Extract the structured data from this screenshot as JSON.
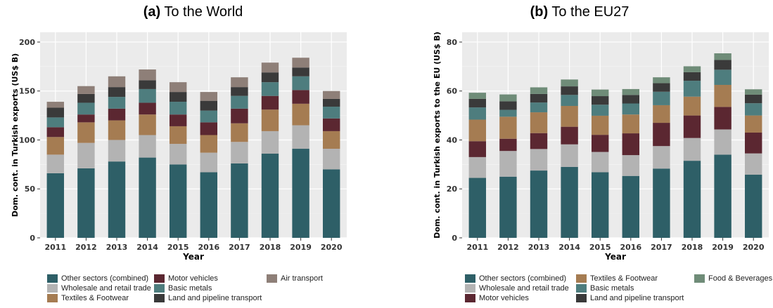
{
  "colors": {
    "Other sectors (combined)": "#2e5f67",
    "Wholesale and retail trade": "#b3b3b3",
    "Textiles & Footwear": "#a57c52",
    "Motor vehicles": "#5b2731",
    "Basic metals": "#4e7d7e",
    "Land and pipeline transport": "#3a3a3a",
    "Air transport": "#8e7f78",
    "Food & Beverages": "#6f8c78"
  },
  "chart_data": [
    {
      "type": "bar",
      "stacked": true,
      "title_prefix": "(a)",
      "title_text": " To the World",
      "xlabel": "Year",
      "ylabel": "Dom. cont. in Turkish exports (US$ B)",
      "categories": [
        "2011",
        "2012",
        "2013",
        "2014",
        "2015",
        "2016",
        "2017",
        "2018",
        "2019",
        "2020"
      ],
      "ylim": [
        0,
        210
      ],
      "yticks": [
        0,
        50,
        100,
        150,
        200
      ],
      "grid": true,
      "series": [
        {
          "name": "Other sectors (combined)",
          "values": [
            66,
            71,
            78,
            82,
            75,
            67,
            76,
            86,
            91,
            70
          ]
        },
        {
          "name": "Wholesale and retail trade",
          "values": [
            19,
            26,
            22,
            23,
            21,
            20,
            22,
            23,
            24,
            21
          ]
        },
        {
          "name": "Textiles & Footwear",
          "values": [
            18,
            21,
            20,
            21,
            18,
            18,
            19,
            22,
            22,
            18
          ]
        },
        {
          "name": "Motor vehicles",
          "values": [
            10,
            8,
            12,
            12,
            12,
            13,
            15,
            14,
            14,
            13
          ]
        },
        {
          "name": "Basic metals",
          "values": [
            10,
            12,
            12,
            14,
            13,
            12,
            13,
            14,
            14,
            12
          ]
        },
        {
          "name": "Land and pipeline transport",
          "values": [
            10,
            9,
            10,
            9,
            10,
            10,
            9,
            10,
            9,
            8
          ]
        },
        {
          "name": "Air transport",
          "values": [
            6,
            8,
            11,
            11,
            10,
            9,
            10,
            10,
            10,
            8
          ]
        }
      ],
      "legend": {
        "position": "bottom",
        "columns": [
          [
            "Other sectors (combined)",
            "Wholesale and retail trade",
            "Textiles & Footwear"
          ],
          [
            "Motor vehicles",
            "Basic metals",
            "Land and pipeline transport"
          ],
          [
            "Air transport"
          ]
        ]
      }
    },
    {
      "type": "bar",
      "stacked": true,
      "title_prefix": "(b)",
      "title_text": " To the EU27",
      "xlabel": "Year",
      "ylabel": "Dom. cont. in Turkish exports to the EU (US$ B)",
      "categories": [
        "2011",
        "2012",
        "2013",
        "2014",
        "2015",
        "2016",
        "2017",
        "2018",
        "2019",
        "2020"
      ],
      "ylim": [
        0,
        84
      ],
      "yticks": [
        0,
        20,
        40,
        60,
        80
      ],
      "grid": true,
      "series": [
        {
          "name": "Other sectors (combined)",
          "values": [
            24.5,
            25,
            27.5,
            29,
            26.8,
            25.3,
            28.3,
            31.5,
            34,
            25.8
          ]
        },
        {
          "name": "Wholesale and retail trade",
          "values": [
            8.5,
            10.5,
            8.8,
            9.2,
            8.3,
            8.5,
            9.2,
            9.3,
            10.3,
            8.7
          ]
        },
        {
          "name": "Motor vehicles",
          "values": [
            6.5,
            5,
            6.5,
            7.2,
            7,
            8.9,
            9.5,
            9.2,
            9.2,
            8.5
          ]
        },
        {
          "name": "Textiles & Footwear",
          "values": [
            8.8,
            9,
            8.5,
            8.5,
            7.8,
            7.7,
            7.2,
            7.7,
            9,
            7
          ]
        },
        {
          "name": "Basic metals",
          "values": [
            5,
            2.8,
            4,
            4.5,
            4.5,
            4.5,
            5.5,
            6.5,
            6.2,
            5
          ]
        },
        {
          "name": "Land and pipeline transport",
          "values": [
            3.5,
            3.5,
            3.5,
            3.5,
            3.5,
            3.5,
            3.5,
            3.5,
            4,
            3.5
          ]
        },
        {
          "name": "Food & Beverages",
          "values": [
            2.5,
            2.8,
            2.7,
            2.8,
            2.7,
            2.4,
            2.4,
            2.4,
            2.7,
            2.2
          ]
        }
      ],
      "legend": {
        "position": "bottom",
        "columns": [
          [
            "Other sectors (combined)",
            "Wholesale and retail trade",
            "Motor vehicles"
          ],
          [
            "Textiles & Footwear",
            "Basic metals",
            "Land and pipeline transport"
          ],
          [
            "Food & Beverages"
          ]
        ]
      }
    }
  ]
}
